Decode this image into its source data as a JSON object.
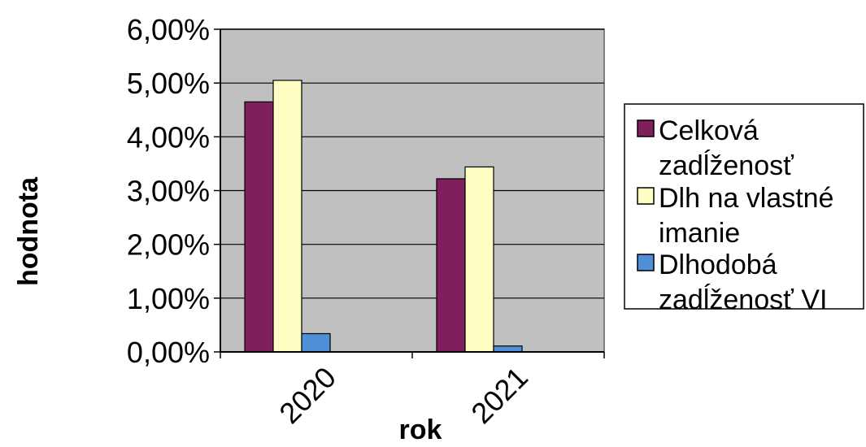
{
  "chart_data": {
    "type": "bar",
    "categories": [
      "2020",
      "2021"
    ],
    "series": [
      {
        "name": "Celková zadĺženosť",
        "name_lines": [
          "Celková",
          "zadĺženosť"
        ],
        "color": "#7f1f5c",
        "values": [
          4.65,
          3.22
        ]
      },
      {
        "name": "Dlh na vlastné imanie",
        "name_lines": [
          "Dlh na vlastné",
          "imanie"
        ],
        "color": "#ffffc4",
        "values": [
          5.05,
          3.44
        ]
      },
      {
        "name": "Dlhodobá zadĺženosť VI",
        "name_lines": [
          "Dlhodobá",
          "zadĺženosť VI"
        ],
        "color": "#4f8fd8",
        "values": [
          0.34,
          0.11
        ]
      }
    ],
    "y_tick_values": [
      0,
      1,
      2,
      3,
      4,
      5,
      6
    ],
    "y_tick_labels": [
      "0,00%",
      "1,00%",
      "2,00%",
      "3,00%",
      "4,00%",
      "5,00%",
      "6,00%"
    ],
    "ylim": [
      0,
      6
    ],
    "xlabel": "rok",
    "ylabel": "hodnota",
    "grid": true,
    "legend_position": "right",
    "plot_background": "#c0c0c0"
  }
}
